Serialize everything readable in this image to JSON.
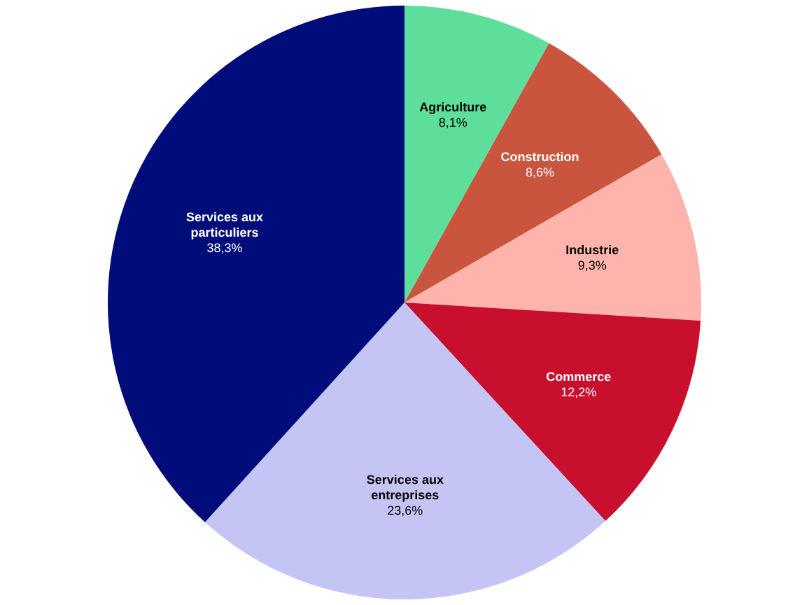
{
  "chart_data": {
    "type": "pie",
    "categories": [
      "Agriculture",
      "Construction",
      "Industrie",
      "Commerce",
      "Services aux entreprises",
      "Services aux particuliers"
    ],
    "values": [
      8.1,
      8.6,
      9.3,
      12.2,
      23.6,
      38.3
    ],
    "colors": [
      "#5ddf9b",
      "#c9553f",
      "#ffb3ad",
      "#c8102e",
      "#c5c5f5",
      "#000c7a"
    ],
    "value_labels": [
      "8,1%",
      "8,6%",
      "9,3%",
      "12,2%",
      "23,6%",
      "38,3%"
    ],
    "legend": false
  }
}
